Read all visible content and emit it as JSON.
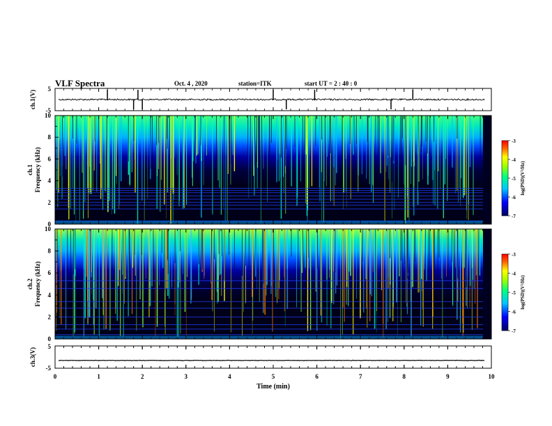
{
  "header": {
    "title": "VLF Spectra",
    "date": "Oct. 4  , 2020",
    "station": "station=ITK",
    "start": "start  UT =   2  : 40 : 0"
  },
  "colors": {
    "background": "#000033",
    "trace": "#000000"
  },
  "chart_data": [
    {
      "type": "line",
      "id": "ch1-waveform",
      "ylabel": "ch.1(V)",
      "ylim": [
        -5,
        5
      ],
      "yticks": [
        "5",
        "-5"
      ],
      "xlim": [
        0,
        10
      ],
      "baseline": 0,
      "note_spikes_min": [
        1.2,
        1.8,
        1.9,
        2.0,
        5.0,
        5.3,
        5.95,
        7.7,
        8.2
      ]
    },
    {
      "type": "heatmap",
      "id": "ch1-spectrogram",
      "ylabel_line1": "ch.1",
      "ylabel_line2": "Frequency (kHz)",
      "ylim": [
        0,
        10
      ],
      "yticks": [
        "0",
        "2",
        "4",
        "6",
        "8",
        "10"
      ],
      "xlim": [
        0,
        10
      ],
      "colorbar": {
        "label": "log(PSD)(V²/Hz)",
        "range": [
          -7,
          -3
        ],
        "ticks": [
          "-3",
          "-4",
          "-5",
          "-6",
          "-7"
        ]
      }
    },
    {
      "type": "heatmap",
      "id": "ch2-spectrogram",
      "ylabel_line1": "ch.2",
      "ylabel_line2": "Frequency (kHz)",
      "ylim": [
        0,
        10
      ],
      "yticks": [
        "0",
        "2",
        "4",
        "6",
        "8",
        "10"
      ],
      "xlim": [
        0,
        10
      ],
      "colorbar": {
        "label": "log(PSD)(V²/Hz)",
        "range": [
          -7,
          -3
        ],
        "ticks": [
          "-3",
          "-4",
          "-5",
          "-6",
          "-7"
        ]
      }
    },
    {
      "type": "line",
      "id": "ch3-waveform",
      "ylabel": "ch.3(V)",
      "ylim": [
        -5,
        5
      ],
      "yticks": [
        "5",
        "-5"
      ],
      "xlim": [
        0,
        10
      ],
      "baseline": -1.5
    }
  ],
  "xaxis": {
    "label": "Time (min)",
    "ticks": [
      "0",
      "1",
      "2",
      "3",
      "4",
      "5",
      "6",
      "7",
      "8",
      "9",
      "10"
    ]
  }
}
